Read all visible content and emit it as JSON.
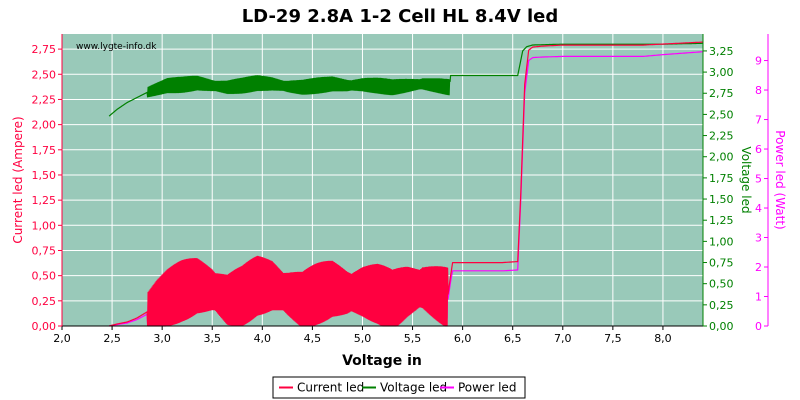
{
  "chart_data": {
    "type": "line",
    "title": "LD-29 2.8A 1-2 Cell HL 8.4V led",
    "watermark": "www.lygte-info.dk",
    "xlabel": "Voltage in",
    "ylabel_left": "Current led (Ampere)",
    "ylabel_right1": "Voltage led",
    "ylabel_right2": "Power led (Watt)",
    "xlim": [
      2.0,
      8.4
    ],
    "ylim_left": [
      0,
      2.9
    ],
    "ylim_right1": [
      0,
      3.45
    ],
    "ylim_right2": [
      0,
      9.9
    ],
    "x_ticks": [
      "2,0",
      "2,5",
      "3,0",
      "3,5",
      "4,0",
      "4,5",
      "5,0",
      "5,5",
      "6,0",
      "6,5",
      "7,0",
      "7,5",
      "8,0"
    ],
    "y_ticks_left": [
      "0,00",
      "0,25",
      "0,50",
      "0,75",
      "1,00",
      "1,25",
      "1,50",
      "1,75",
      "2,00",
      "2,25",
      "2,50",
      "2,75"
    ],
    "y_ticks_right1": [
      "0,00",
      "0,25",
      "0,50",
      "0,75",
      "1,00",
      "1,25",
      "1,50",
      "1,75",
      "2,00",
      "2,25",
      "2,50",
      "2,75",
      "3,00",
      "3,25"
    ],
    "y_ticks_right2": [
      "0",
      "1",
      "2",
      "3",
      "4",
      "5",
      "6",
      "7",
      "8",
      "9"
    ],
    "grid": true,
    "legend_position": "bottom",
    "colors": {
      "plot_bg": "#99c9b9",
      "grid": "#ffffff",
      "current": "#ff0040",
      "voltage": "#008000",
      "power": "#ff00ff",
      "left_axis": "#ff0040",
      "right1_axis": "#008000",
      "right2_axis": "#ff00ff"
    },
    "series": [
      {
        "name": "Current led",
        "axis": "left",
        "x": [
          2.47,
          2.55,
          2.65,
          2.75,
          2.85,
          2.95,
          3.05,
          3.2,
          3.35,
          3.5,
          3.65,
          3.8,
          3.95,
          4.1,
          4.25,
          4.4,
          4.55,
          4.7,
          4.85,
          5.0,
          5.15,
          5.3,
          5.45,
          5.6,
          5.75,
          5.85,
          5.88,
          5.9,
          6.0,
          6.2,
          6.4,
          6.55,
          6.58,
          6.62,
          6.66,
          6.7,
          6.8,
          7.0,
          7.5,
          7.8,
          8.0,
          8.4
        ],
        "y": [
          0.0,
          0.02,
          0.04,
          0.08,
          0.14,
          0.22,
          0.28,
          0.35,
          0.4,
          0.36,
          0.26,
          0.3,
          0.4,
          0.4,
          0.32,
          0.26,
          0.32,
          0.37,
          0.33,
          0.34,
          0.32,
          0.26,
          0.34,
          0.38,
          0.32,
          0.28,
          0.5,
          0.63,
          0.63,
          0.63,
          0.63,
          0.64,
          1.3,
          2.4,
          2.74,
          2.77,
          2.78,
          2.79,
          2.79,
          2.79,
          2.8,
          2.82
        ],
        "ripple_between_x": [
          2.85,
          5.85
        ],
        "ripple_amplitude": 0.3
      },
      {
        "name": "Voltage led",
        "axis": "right1",
        "x": [
          2.47,
          2.55,
          2.65,
          2.75,
          2.85,
          2.95,
          3.05,
          3.2,
          3.35,
          3.5,
          3.65,
          3.8,
          3.95,
          4.1,
          4.25,
          4.4,
          4.55,
          4.7,
          4.85,
          5.0,
          5.15,
          5.3,
          5.45,
          5.6,
          5.75,
          5.87,
          5.88,
          5.9,
          6.0,
          6.2,
          6.4,
          6.55,
          6.6,
          6.64,
          6.7,
          7.0,
          7.5,
          8.0,
          8.4
        ],
        "y": [
          2.48,
          2.56,
          2.64,
          2.7,
          2.76,
          2.8,
          2.84,
          2.85,
          2.87,
          2.84,
          2.82,
          2.84,
          2.87,
          2.86,
          2.83,
          2.82,
          2.84,
          2.86,
          2.84,
          2.85,
          2.84,
          2.82,
          2.84,
          2.86,
          2.84,
          2.82,
          2.96,
          2.96,
          2.96,
          2.96,
          2.96,
          2.96,
          3.25,
          3.3,
          3.32,
          3.33,
          3.33,
          3.33,
          3.34
        ],
        "ripple_between_x": [
          2.85,
          5.87
        ],
        "ripple_amplitude": 0.09
      },
      {
        "name": "Power led",
        "axis": "right2",
        "x": [
          2.47,
          2.55,
          2.65,
          2.75,
          2.85,
          2.95,
          3.05,
          3.2,
          3.35,
          3.5,
          3.65,
          3.8,
          3.95,
          4.1,
          4.25,
          4.4,
          4.55,
          4.7,
          4.85,
          5.0,
          5.15,
          5.3,
          5.45,
          5.6,
          5.75,
          5.85,
          5.88,
          5.9,
          6.0,
          6.2,
          6.4,
          6.55,
          6.58,
          6.62,
          6.66,
          6.7,
          6.8,
          7.0,
          7.5,
          7.8,
          8.0,
          8.4
        ],
        "y": [
          0.0,
          0.05,
          0.1,
          0.22,
          0.4,
          0.63,
          0.8,
          1.0,
          1.15,
          1.05,
          0.75,
          0.86,
          1.15,
          1.15,
          0.92,
          0.75,
          0.92,
          1.07,
          0.95,
          0.98,
          0.92,
          0.75,
          0.98,
          1.09,
          0.92,
          0.8,
          1.5,
          1.87,
          1.87,
          1.87,
          1.87,
          1.9,
          4.2,
          7.9,
          9.0,
          9.1,
          9.12,
          9.14,
          9.14,
          9.14,
          9.2,
          9.3
        ],
        "ripple_between_x": [
          2.85,
          5.85
        ],
        "ripple_amplitude": 0.55
      }
    ]
  }
}
